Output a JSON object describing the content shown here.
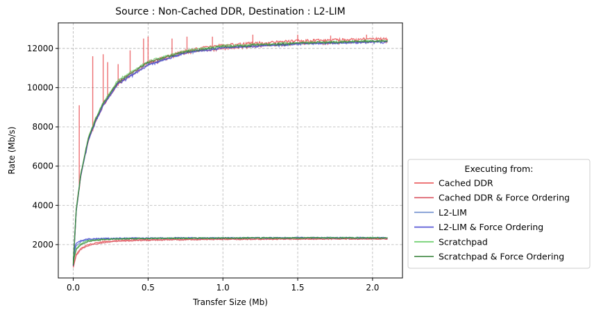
{
  "chart_data": {
    "type": "line",
    "title": "Source : Non-Cached DDR, Destination : L2-LIM",
    "xlabel": "Transfer Size (Mb)",
    "ylabel": "Rate (Mb/s)",
    "xlim": [
      -0.1,
      2.2
    ],
    "ylim": [
      300,
      13300
    ],
    "x_ticks": [
      0.0,
      0.5,
      1.0,
      1.5,
      2.0
    ],
    "x_tick_labels": [
      "0.0",
      "0.5",
      "1.0",
      "1.5",
      "2.0"
    ],
    "y_ticks": [
      2000,
      4000,
      6000,
      8000,
      10000,
      12000
    ],
    "y_tick_labels": [
      "2000",
      "4000",
      "6000",
      "8000",
      "10000",
      "12000"
    ],
    "grid": true,
    "grid_style": "dashed",
    "legend": {
      "title": "Executing from:",
      "placement": "center-right, outside plot area"
    },
    "series": [
      {
        "name": "Cached DDR",
        "color": "#e8474a",
        "low_group": {
          "x": [
            0.0,
            0.01,
            0.02,
            0.05,
            0.1,
            0.2,
            0.3,
            0.5,
            0.75,
            1.0,
            1.5,
            2.0,
            2.1
          ],
          "y": [
            900,
            1200,
            1500,
            1800,
            2000,
            2150,
            2200,
            2250,
            2270,
            2280,
            2290,
            2300,
            2300
          ]
        },
        "high_group": {
          "x": [
            0.0,
            0.01,
            0.02,
            0.05,
            0.1,
            0.15,
            0.2,
            0.3,
            0.5,
            0.75,
            1.0,
            1.5,
            2.0,
            2.1
          ],
          "y": [
            1000,
            2500,
            3800,
            5600,
            7400,
            8400,
            9200,
            10300,
            11300,
            11900,
            12200,
            12400,
            12500,
            12500
          ],
          "spikes": [
            {
              "x": 0.04,
              "y": 9100
            },
            {
              "x": 0.13,
              "y": 11600
            },
            {
              "x": 0.2,
              "y": 11700
            },
            {
              "x": 0.23,
              "y": 11300
            },
            {
              "x": 0.3,
              "y": 11200
            },
            {
              "x": 0.38,
              "y": 11900
            },
            {
              "x": 0.47,
              "y": 12500
            },
            {
              "x": 0.5,
              "y": 12600
            },
            {
              "x": 0.66,
              "y": 12500
            },
            {
              "x": 0.76,
              "y": 12600
            },
            {
              "x": 0.93,
              "y": 12600
            },
            {
              "x": 1.2,
              "y": 12700
            },
            {
              "x": 1.5,
              "y": 12700
            },
            {
              "x": 1.72,
              "y": 12650
            },
            {
              "x": 1.96,
              "y": 12700
            }
          ]
        }
      },
      {
        "name": "Cached DDR & Force Ordering",
        "color": "#d9535f",
        "low_group": {
          "x": [
            0.0,
            0.01,
            0.02,
            0.05,
            0.1,
            0.2,
            0.3,
            0.5,
            0.75,
            1.0,
            1.5,
            2.0,
            2.1
          ],
          "y": [
            850,
            1150,
            1450,
            1750,
            1950,
            2100,
            2170,
            2220,
            2250,
            2270,
            2280,
            2290,
            2290
          ]
        },
        "high_group": {
          "x": [
            0.0,
            0.01,
            0.02,
            0.05,
            0.1,
            0.15,
            0.2,
            0.3,
            0.5,
            0.75,
            1.0,
            1.5,
            2.0,
            2.1
          ],
          "y": [
            950,
            2400,
            3700,
            5500,
            7300,
            8300,
            9100,
            10200,
            11200,
            11800,
            12000,
            12250,
            12350,
            12350
          ]
        }
      },
      {
        "name": "L2-LIM",
        "color": "#5b7fc7",
        "low_group": {
          "x": [
            0.0,
            0.01,
            0.02,
            0.05,
            0.1,
            0.2,
            0.3,
            0.5,
            0.75,
            1.0,
            1.5,
            2.0,
            2.1
          ],
          "y": [
            1200,
            1700,
            1950,
            2150,
            2250,
            2300,
            2310,
            2320,
            2330,
            2340,
            2340,
            2340,
            2340
          ]
        },
        "high_group": {
          "x": [
            0.0,
            0.01,
            0.02,
            0.05,
            0.1,
            0.15,
            0.2,
            0.3,
            0.5,
            0.75,
            1.0,
            1.5,
            2.0,
            2.1
          ],
          "y": [
            1000,
            2450,
            3750,
            5550,
            7350,
            8350,
            9150,
            10250,
            11200,
            11800,
            12050,
            12250,
            12350,
            12350
          ]
        }
      },
      {
        "name": "L2-LIM & Force Ordering",
        "color": "#3a3ad0",
        "low_group": {
          "x": [
            0.0,
            0.01,
            0.02,
            0.05,
            0.1,
            0.2,
            0.3,
            0.5,
            0.75,
            1.0,
            1.5,
            2.0,
            2.1
          ],
          "y": [
            1300,
            1800,
            2050,
            2200,
            2280,
            2310,
            2320,
            2330,
            2340,
            2340,
            2350,
            2350,
            2350
          ]
        },
        "high_group": {
          "x": [
            0.0,
            0.01,
            0.02,
            0.05,
            0.1,
            0.15,
            0.2,
            0.3,
            0.5,
            0.75,
            1.0,
            1.5,
            2.0,
            2.1
          ],
          "y": [
            950,
            2400,
            3700,
            5500,
            7300,
            8300,
            9100,
            10200,
            11150,
            11780,
            12030,
            12230,
            12330,
            12330
          ]
        }
      },
      {
        "name": "Scratchpad",
        "color": "#5cc95c",
        "low_group": {
          "x": [
            0.0,
            0.01,
            0.02,
            0.05,
            0.1,
            0.2,
            0.3,
            0.5,
            0.75,
            1.0,
            1.5,
            2.0,
            2.1
          ],
          "y": [
            1100,
            1500,
            1800,
            2050,
            2200,
            2270,
            2300,
            2320,
            2330,
            2340,
            2340,
            2350,
            2350
          ]
        },
        "high_group": {
          "x": [
            0.0,
            0.01,
            0.02,
            0.05,
            0.1,
            0.15,
            0.2,
            0.3,
            0.5,
            0.75,
            1.0,
            1.5,
            2.0,
            2.1
          ],
          "y": [
            1050,
            2500,
            3800,
            5600,
            7450,
            8450,
            9250,
            10400,
            11350,
            11900,
            12150,
            12300,
            12400,
            12400
          ]
        }
      },
      {
        "name": "Scratchpad & Force Ordering",
        "color": "#2e7d32",
        "low_group": {
          "x": [
            0.0,
            0.01,
            0.02,
            0.05,
            0.1,
            0.2,
            0.3,
            0.5,
            0.75,
            1.0,
            1.5,
            2.0,
            2.1
          ],
          "y": [
            1050,
            1450,
            1750,
            2000,
            2170,
            2250,
            2290,
            2310,
            2320,
            2330,
            2340,
            2340,
            2340
          ]
        },
        "high_group": {
          "x": [
            0.0,
            0.01,
            0.02,
            0.05,
            0.1,
            0.15,
            0.2,
            0.3,
            0.5,
            0.75,
            1.0,
            1.5,
            2.0,
            2.1
          ],
          "y": [
            1000,
            2450,
            3750,
            5550,
            7400,
            8400,
            9200,
            10300,
            11300,
            11850,
            12100,
            12280,
            12380,
            12380
          ]
        }
      }
    ]
  }
}
